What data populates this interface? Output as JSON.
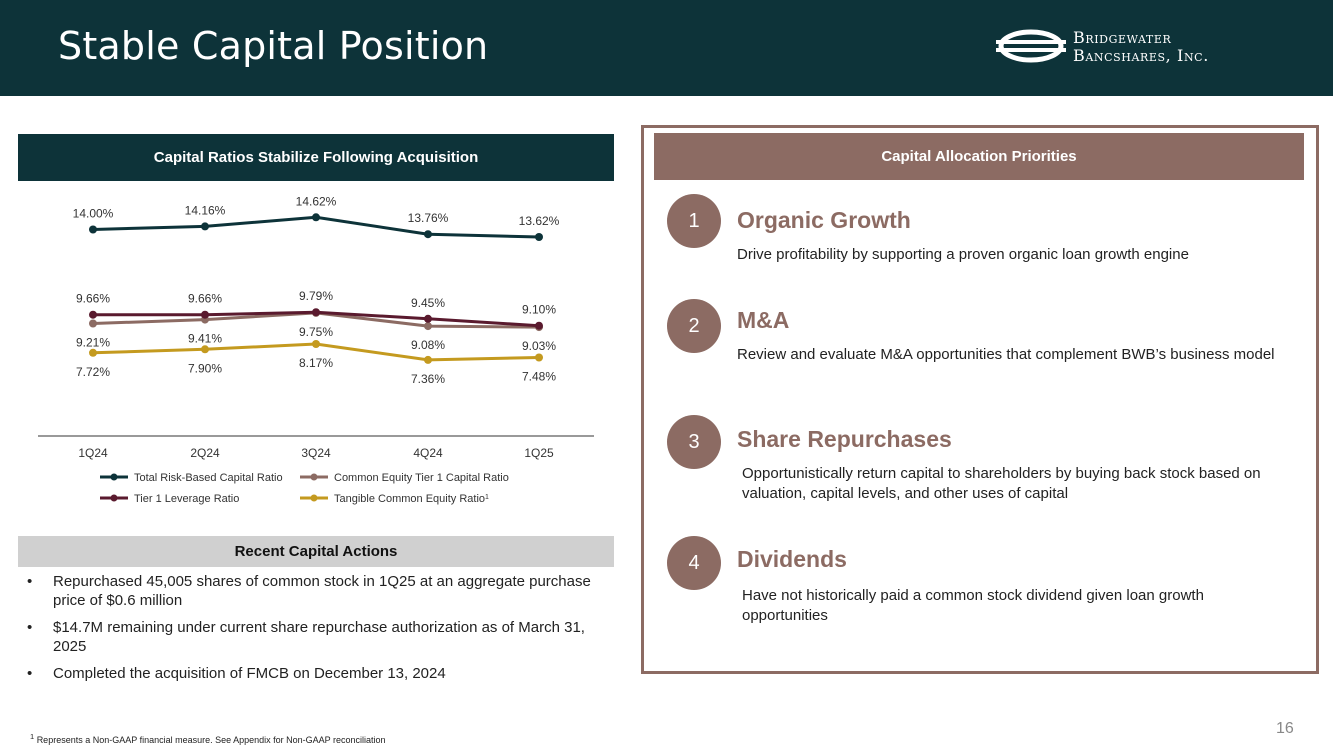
{
  "header": {
    "title": "Stable Capital Position"
  },
  "logo": {
    "line1": "Bridgewater",
    "line2": "Bancshares, Inc."
  },
  "chart_section": {
    "banner": "Capital Ratios Stabilize Following Acquisition"
  },
  "chart_data": {
    "type": "line",
    "title": "Capital Ratios Stabilize Following Acquisition",
    "categories": [
      "1Q24",
      "2Q24",
      "3Q24",
      "4Q24",
      "1Q25"
    ],
    "series": [
      {
        "name": "Total Risk-Based Capital Ratio",
        "values": [
          14.0,
          14.16,
          14.62,
          13.76,
          13.62
        ],
        "labels": [
          "14.00%",
          "14.16%",
          "14.62%",
          "13.76%",
          "13.62%"
        ],
        "color": "#0d3339",
        "label_position": "above"
      },
      {
        "name": "Common Equity Tier 1 Capital Ratio",
        "values": [
          9.21,
          9.41,
          9.75,
          9.08,
          9.03
        ],
        "labels": [
          "9.21%",
          "9.41%",
          "9.75%",
          "9.08%",
          "9.03%"
        ],
        "color": "#8c6b63",
        "label_position": "below"
      },
      {
        "name": "Tier 1 Leverage Ratio",
        "values": [
          9.66,
          9.66,
          9.79,
          9.45,
          9.1
        ],
        "labels": [
          "9.66%",
          "9.66%",
          "9.79%",
          "9.45%",
          "9.10%"
        ],
        "color": "#5a1a2e",
        "label_position": "above"
      },
      {
        "name": "Tangible Common Equity Ratio",
        "legend_sup": "1",
        "values": [
          7.72,
          7.9,
          8.17,
          7.36,
          7.48
        ],
        "labels": [
          "7.72%",
          "7.90%",
          "8.17%",
          "7.36%",
          "7.48%"
        ],
        "color": "#c49a1f",
        "label_position": "below"
      }
    ],
    "xlabel": "",
    "ylabel": "",
    "ylim": [
      4.5,
      15.3
    ],
    "grid": false,
    "legend": "bottom"
  },
  "actions": {
    "banner": "Recent Capital Actions",
    "items": [
      "Repurchased 45,005 shares of common stock in 1Q25 at an aggregate purchase price of $0.6 million",
      "$14.7M remaining under current share repurchase authorization as of March 31, 2025",
      "Completed the acquisition of FMCB on December 13, 2024"
    ]
  },
  "priorities": {
    "banner": "Capital Allocation Priorities",
    "items": [
      {
        "number": "1",
        "title": "Organic Growth",
        "desc": "Drive profitability by supporting a proven organic loan growth engine"
      },
      {
        "number": "2",
        "title": "M&A",
        "desc": "Review and evaluate M&A opportunities that complement BWB’s business model"
      },
      {
        "number": "3",
        "title": "Share Repurchases",
        "desc": "Opportunistically return capital to shareholders by buying back stock based on valuation, capital levels, and other uses of capital"
      },
      {
        "number": "4",
        "title": "Dividends",
        "desc": "Have not historically paid a common stock dividend given loan growth opportunities"
      }
    ]
  },
  "footnote": {
    "sup": "1",
    "text": "Represents a Non-GAAP financial measure. See Appendix for Non-GAAP reconciliation"
  },
  "page_number": "16"
}
